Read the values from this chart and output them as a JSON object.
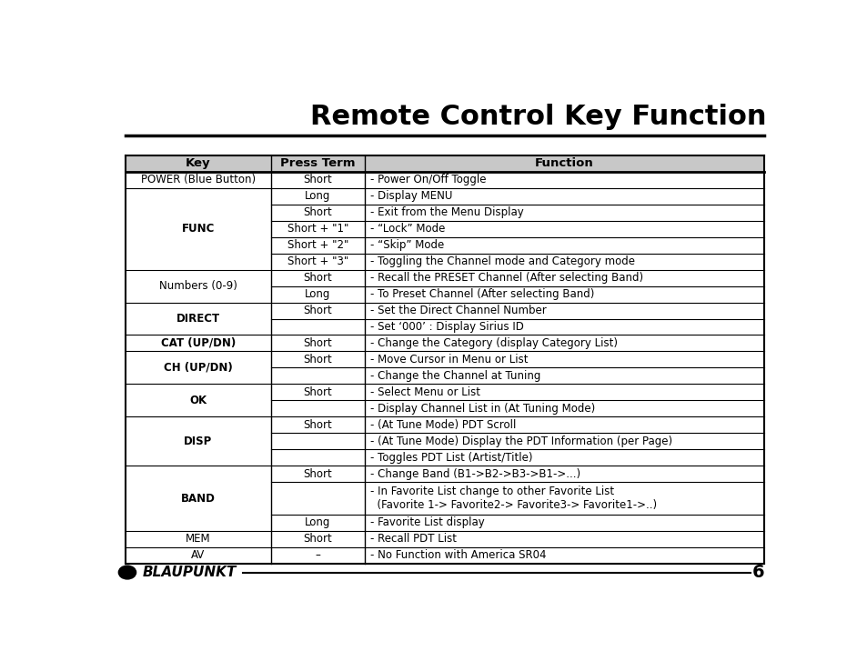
{
  "title": "Remote Control Key Function",
  "title_fontsize": 22,
  "page_number": "6",
  "header_row": [
    "Key",
    "Press Term",
    "Function"
  ],
  "rows": [
    {
      "key": "POWER (Blue Button)",
      "key_bold": false,
      "press": [
        "Short"
      ],
      "functions": [
        "- Power On/Off Toggle"
      ]
    },
    {
      "key": "FUNC",
      "key_bold": true,
      "press": [
        "Long",
        "Short",
        "Short + \"1\"",
        "Short + \"2\"",
        "Short + \"3\""
      ],
      "functions": [
        "- Display MENU",
        "- Exit from the Menu Display",
        "- “Lock” Mode",
        "- “Skip” Mode",
        "- Toggling the Channel mode and Category mode"
      ]
    },
    {
      "key": "Numbers (0-9)",
      "key_bold": false,
      "press": [
        "Short",
        "Long"
      ],
      "functions": [
        "- Recall the PRESET Channel (After selecting Band)",
        "- To Preset Channel (After selecting Band)"
      ]
    },
    {
      "key": "DIRECT",
      "key_bold": true,
      "press": [
        "Short",
        ""
      ],
      "functions": [
        "- Set the Direct Channel Number",
        "- Set ‘000’ : Display Sirius ID"
      ]
    },
    {
      "key": "CAT (UP/DN)",
      "key_bold": true,
      "press": [
        "Short"
      ],
      "functions": [
        "- Change the Category (display Category List)"
      ]
    },
    {
      "key": "CH (UP/DN)",
      "key_bold": true,
      "press": [
        "Short",
        ""
      ],
      "functions": [
        "- Move Cursor in Menu or List",
        "- Change the Channel at Tuning"
      ]
    },
    {
      "key": "OK",
      "key_bold": true,
      "press": [
        "Short",
        ""
      ],
      "functions": [
        "- Select Menu or List",
        "- Display Channel List in (At Tuning Mode)"
      ]
    },
    {
      "key": "DISP",
      "key_bold": true,
      "press": [
        "Short",
        "",
        ""
      ],
      "functions": [
        "- (At Tune Mode) PDT Scroll",
        "- (At Tune Mode) Display the PDT Information (per Page)",
        "- Toggles PDT List (Artist/Title)"
      ]
    },
    {
      "key": "BAND",
      "key_bold": true,
      "press": [
        "Short",
        "",
        "Long"
      ],
      "functions": [
        "- Change Band (B1->B2->B3->B1->...)",
        "- In Favorite List change to other Favorite List\n  (Favorite 1-> Favorite2-> Favorite3-> Favorite1->..)",
        "- Favorite List display"
      ]
    },
    {
      "key": "MEM",
      "key_bold": false,
      "press": [
        "Short"
      ],
      "functions": [
        "- Recall PDT List"
      ]
    },
    {
      "key": "AV",
      "key_bold": false,
      "press": [
        "–"
      ],
      "functions": [
        "- No Function with America SR04"
      ]
    }
  ],
  "bg_color": "#ffffff",
  "header_bg": "#c8c8c8",
  "line_color": "#000000",
  "text_color": "#000000",
  "header_fontsize": 9.5,
  "body_fontsize": 8.5,
  "blaupunkt_text": "BLAUPUNKT"
}
